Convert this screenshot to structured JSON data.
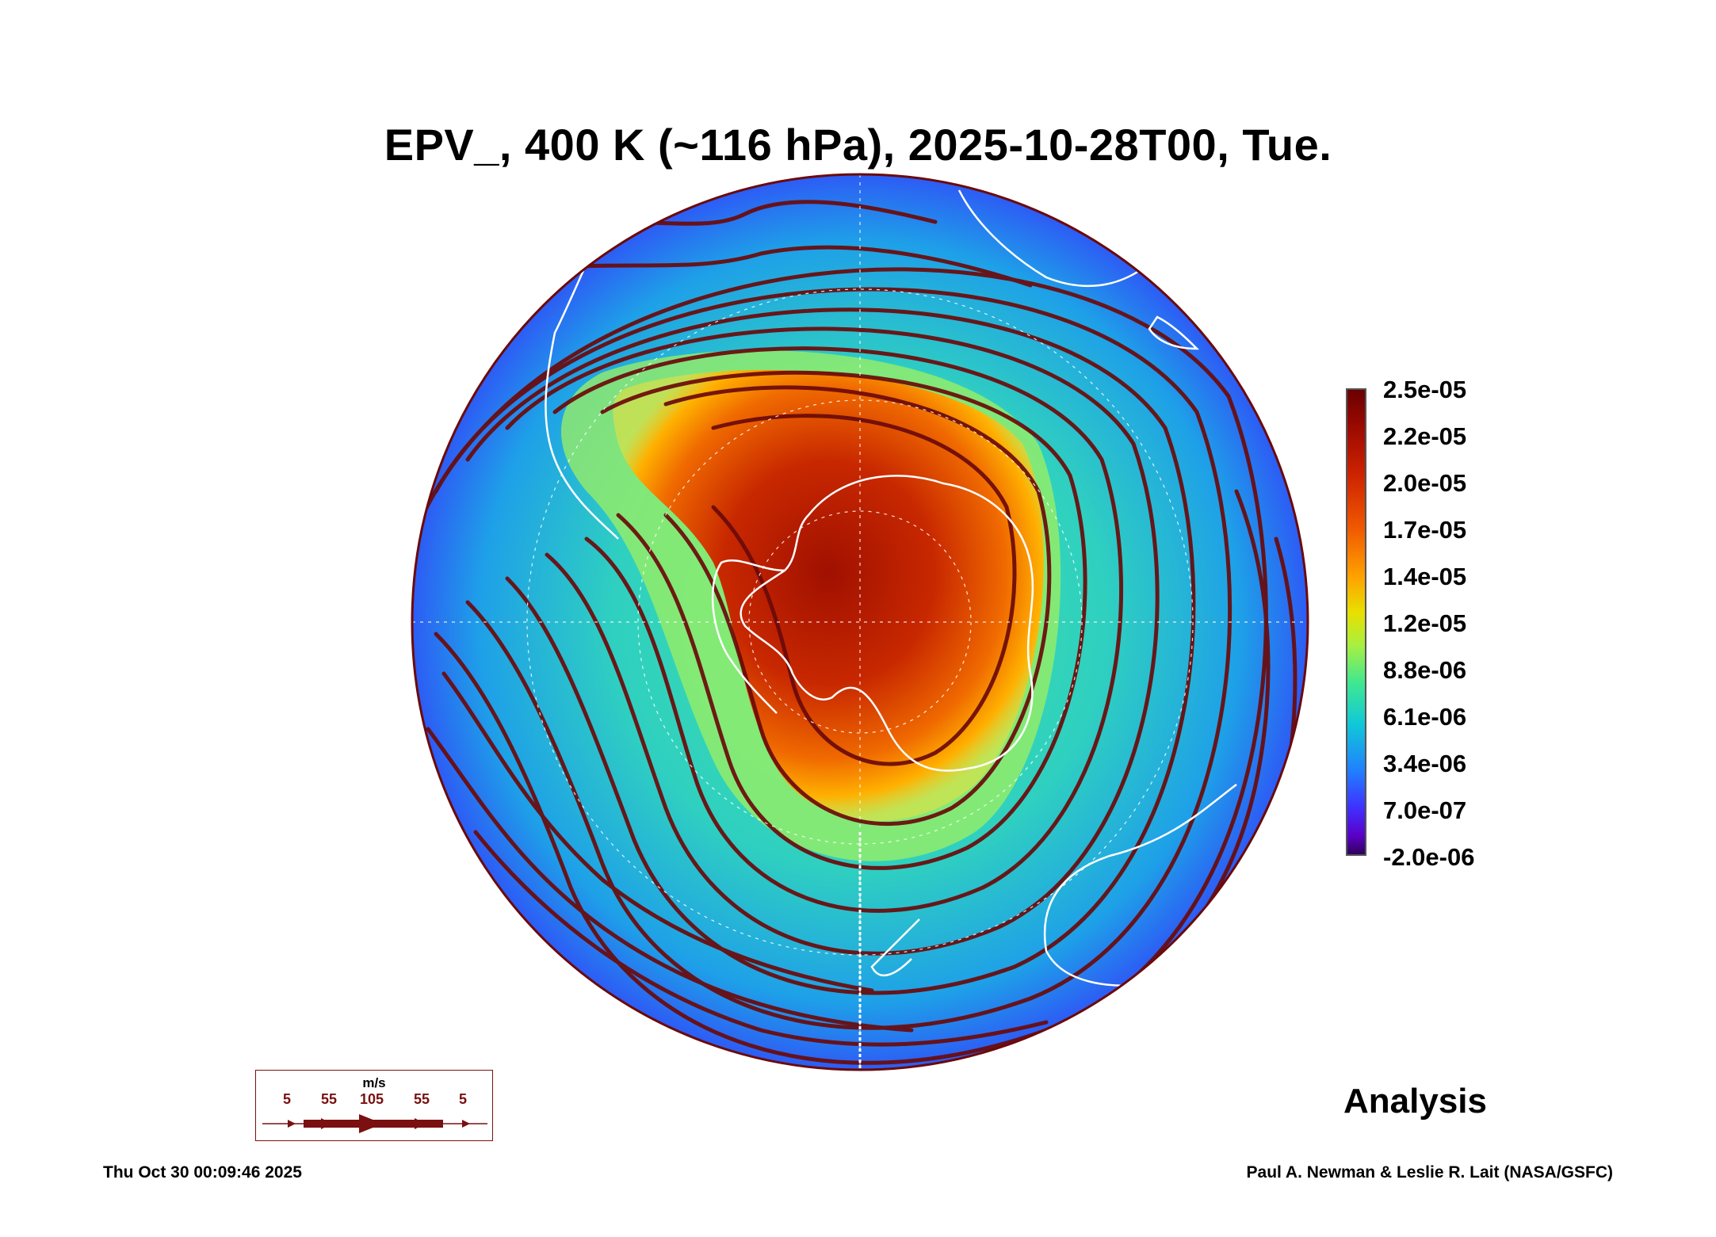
{
  "title": "EPV_, 400 K (~116 hPa), 2025-10-28T00, Tue.",
  "product_label": "Analysis",
  "timestamp": "Thu Oct 30 00:09:46 2025",
  "credit": "Paul A. Newman & Leslie R. Lait (NASA/GSFC)",
  "colorbar": {
    "labels": [
      "2.5e-05",
      "2.2e-05",
      "2.0e-05",
      "1.7e-05",
      "1.4e-05",
      "1.2e-05",
      "8.8e-06",
      "6.1e-06",
      "3.4e-06",
      "7.0e-07",
      "-2.0e-06"
    ],
    "max": 2.5e-05,
    "min": -2e-06
  },
  "wind_legend": {
    "unit": "m/s",
    "speeds": [
      "5",
      "55",
      "105",
      "55",
      "5"
    ]
  },
  "map": {
    "projection": "orthographic, south polar",
    "coastline_color": "#ffffff",
    "streamline_color": "#6b0a0a",
    "vortex_color": "#b81a00"
  }
}
